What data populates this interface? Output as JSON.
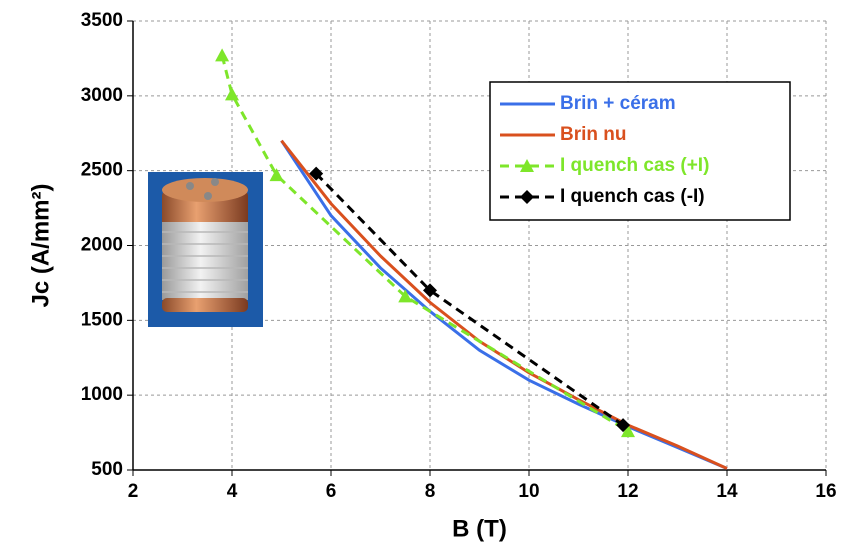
{
  "chart_data": {
    "type": "line",
    "x_label": "B (T)",
    "y_label": "Jc (A/mm²)",
    "xlim": [
      2,
      16
    ],
    "xticks": [
      2,
      4,
      6,
      8,
      10,
      12,
      14,
      16
    ],
    "ylim": [
      500,
      3500
    ],
    "yticks": [
      500,
      1000,
      1500,
      2000,
      2500,
      3000,
      3500
    ],
    "grid": true,
    "legend": "upper right",
    "series": [
      {
        "name": "Brin + céram",
        "color": "#3a6fe8",
        "dashed": false,
        "marker": "none",
        "x": [
          5,
          6,
          7,
          8,
          9,
          10,
          11,
          12,
          13,
          14
        ],
        "values": [
          2700,
          2200,
          1850,
          1560,
          1300,
          1100,
          940,
          790,
          650,
          510
        ]
      },
      {
        "name": "Brin nu",
        "color": "#d9501e",
        "dashed": false,
        "marker": "none",
        "x": [
          5,
          6,
          7,
          8,
          9,
          10,
          11,
          12,
          13,
          14
        ],
        "values": [
          2700,
          2280,
          1930,
          1620,
          1360,
          1150,
          970,
          800,
          660,
          510
        ]
      },
      {
        "name": "I quench cas (+I)",
        "color": "#7ee62a",
        "dashed": true,
        "marker": "triangle",
        "x": [
          3.8,
          4,
          4.9,
          7.5,
          12
        ],
        "values": [
          3270,
          3010,
          2470,
          1660,
          760
        ]
      },
      {
        "name": "I quench cas (-I)",
        "color": "#000000",
        "dashed": true,
        "marker": "diamond",
        "x": [
          5.7,
          8,
          11.9
        ],
        "values": [
          2480,
          1700,
          800
        ]
      }
    ]
  }
}
